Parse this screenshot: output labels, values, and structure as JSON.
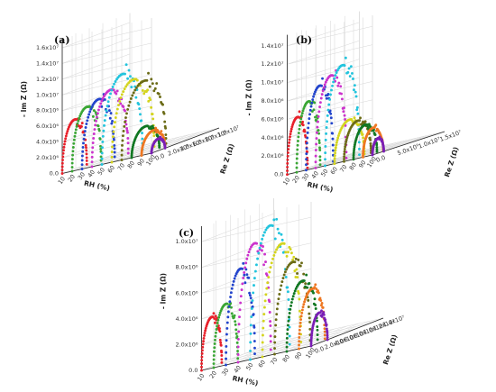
{
  "figure": {
    "panel_labels": [
      "(a)",
      "(b)",
      "(c)"
    ],
    "axis_titles": {
      "rh": "RH (%)",
      "imz": "- Im Z (Ω)",
      "rez": "Re Z (Ω)"
    }
  },
  "chart_data": [
    {
      "type": "scatter",
      "subtype": "3d-nyquist",
      "panel": "(a)",
      "rh_ticks": [
        "10",
        "20",
        "30",
        "40",
        "50",
        "60",
        "70",
        "80",
        "90",
        "100"
      ],
      "imz_ticks": [
        "0.0",
        "2.0x10⁶",
        "4.0x10⁶",
        "6.0x10⁶",
        "8.0x10⁶",
        "1.0x10⁷",
        "1.2x10⁷",
        "1.4x10⁷",
        "1.6x10⁷"
      ],
      "rez_ticks": [
        "0.0",
        "2.0x10⁶",
        "4.0x10⁶",
        "6.0x10⁶",
        "8.0x10⁶",
        "1.0x10⁷"
      ],
      "imz_lim": [
        0,
        17000000
      ],
      "rez_lim": [
        0,
        11000000
      ],
      "series": [
        {
          "rh": 10,
          "color": "#e8202a",
          "diameter": 4000000,
          "peak": 6200000
        },
        {
          "rh": 20,
          "color": "#3aa635",
          "diameter": 4700000,
          "peak": 7400000
        },
        {
          "rh": 30,
          "color": "#2244cc",
          "diameter": 5300000,
          "peak": 8000000
        },
        {
          "rh": 40,
          "color": "#cc33cc",
          "diameter": 5900000,
          "peak": 8800000
        },
        {
          "rh": 50,
          "color": "#22c4dd",
          "diameter": 6600000,
          "peak": 10400000
        },
        {
          "rh": 60,
          "color": "#d4d41e",
          "diameter": 6900000,
          "peak": 9400000
        },
        {
          "rh": 70,
          "color": "#6b6b16",
          "diameter": 7200000,
          "peak": 8900000
        },
        {
          "rh": 80,
          "color": "#117722",
          "diameter": 4500000,
          "peak": 3300000
        },
        {
          "rh": 90,
          "color": "#ee7722",
          "diameter": 3800000,
          "peak": 2600000
        },
        {
          "rh": 100,
          "color": "#7a1fb5",
          "diameter": 2200000,
          "peak": 1500000
        }
      ]
    },
    {
      "type": "scatter",
      "subtype": "3d-nyquist",
      "panel": "(b)",
      "rh_ticks": [
        "10",
        "20",
        "30",
        "40",
        "50",
        "60",
        "70",
        "80",
        "90",
        "100"
      ],
      "imz_ticks": [
        "0.0",
        "2.0x10⁶",
        "4.0x10⁶",
        "6.0x10⁶",
        "8.0x10⁶",
        "1.0x10⁷",
        "1.2x10⁷",
        "1.4x10⁷"
      ],
      "rez_ticks": [
        "0.0",
        "5.0x10⁶",
        "1.0x10⁷",
        "1.5x10⁷"
      ],
      "imz_lim": [
        0,
        15000000
      ],
      "rez_lim": [
        0,
        16000000
      ],
      "series": [
        {
          "rh": 10,
          "color": "#e8202a",
          "diameter": 4500000,
          "peak": 5800000
        },
        {
          "rh": 20,
          "color": "#3aa635",
          "diameter": 5200000,
          "peak": 7200000
        },
        {
          "rh": 30,
          "color": "#2244cc",
          "diameter": 6000000,
          "peak": 8600000
        },
        {
          "rh": 40,
          "color": "#cc33cc",
          "diameter": 6800000,
          "peak": 9400000
        },
        {
          "rh": 50,
          "color": "#22c4dd",
          "diameter": 7600000,
          "peak": 10200000
        },
        {
          "rh": 60,
          "color": "#d4d41e",
          "diameter": 6600000,
          "peak": 4200000
        },
        {
          "rh": 70,
          "color": "#6b6b16",
          "diameter": 6000000,
          "peak": 3900000
        },
        {
          "rh": 80,
          "color": "#117722",
          "diameter": 5200000,
          "peak": 3300000
        },
        {
          "rh": 90,
          "color": "#ee7722",
          "diameter": 4500000,
          "peak": 2800000
        },
        {
          "rh": 100,
          "color": "#7a1fb5",
          "diameter": 2500000,
          "peak": 1600000
        }
      ]
    },
    {
      "type": "scatter",
      "subtype": "3d-nyquist",
      "panel": "(c)",
      "rh_ticks": [
        "10",
        "20",
        "30",
        "40",
        "50",
        "60",
        "70",
        "80",
        "90",
        "100"
      ],
      "imz_ticks": [
        "0.0",
        "2.0x10⁶",
        "4.0x10⁶",
        "6.0x10⁶",
        "8.0x10⁶",
        "1.0x10⁷"
      ],
      "rez_ticks": [
        "0.0",
        "2.0x10⁶",
        "4.0x10⁶",
        "6.0x10⁶",
        "8.0x10⁶",
        "1.0x10⁷",
        "1.2x10⁷",
        "1.4x10⁷"
      ],
      "imz_lim": [
        0,
        10500000
      ],
      "rez_lim": [
        0,
        15000000
      ],
      "series": [
        {
          "rh": 10,
          "color": "#e8202a",
          "diameter": 4200000,
          "peak": 3600000
        },
        {
          "rh": 20,
          "color": "#3aa635",
          "diameter": 5000000,
          "peak": 4300000
        },
        {
          "rh": 30,
          "color": "#2244cc",
          "diameter": 6000000,
          "peak": 6600000
        },
        {
          "rh": 40,
          "color": "#cc33cc",
          "diameter": 6800000,
          "peak": 8200000
        },
        {
          "rh": 50,
          "color": "#22c4dd",
          "diameter": 8200000,
          "peak": 9200000
        },
        {
          "rh": 60,
          "color": "#d4d41e",
          "diameter": 8000000,
          "peak": 7700000
        },
        {
          "rh": 70,
          "color": "#6b6b16",
          "diameter": 7400000,
          "peak": 6200000
        },
        {
          "rh": 80,
          "color": "#117722",
          "diameter": 6400000,
          "peak": 4700000
        },
        {
          "rh": 90,
          "color": "#ee7722",
          "diameter": 5400000,
          "peak": 4000000
        },
        {
          "rh": 100,
          "color": "#7a1fb5",
          "diameter": 3400000,
          "peak": 2200000
        }
      ]
    }
  ]
}
